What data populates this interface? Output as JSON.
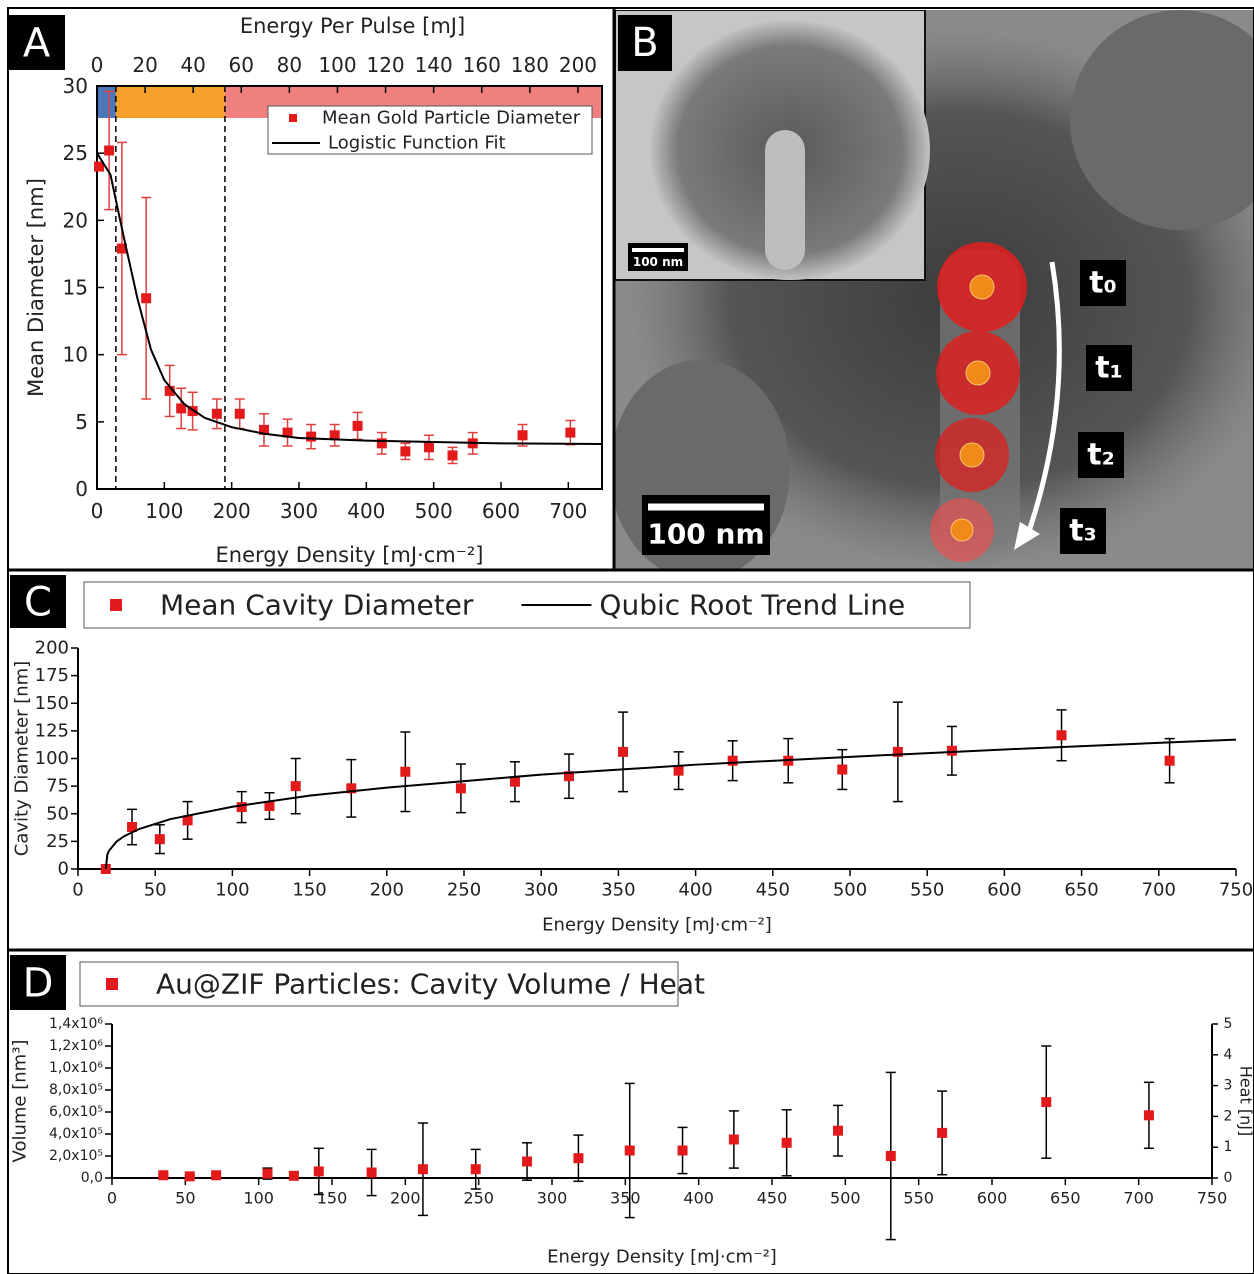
{
  "chart_data": [
    {
      "type": "scatter",
      "panel_label": "A",
      "x2label": "Energy Per Pulse [mJ]",
      "xlabel": "Energy Density [mJ·cm⁻²]",
      "ylabel": "Mean Diameter [nm]",
      "xlim": [
        0,
        750
      ],
      "xticks": [
        0,
        100,
        200,
        300,
        400,
        500,
        600,
        700
      ],
      "x2lim": [
        0,
        210
      ],
      "x2ticks": [
        0,
        20,
        40,
        60,
        80,
        100,
        120,
        140,
        160,
        180,
        200
      ],
      "ylim": [
        0,
        30
      ],
      "yticks": [
        0,
        5,
        10,
        15,
        20,
        25,
        30
      ],
      "regions": [
        {
          "from": 0,
          "to": 28,
          "color": "#4a78b8"
        },
        {
          "from": 28,
          "to": 190,
          "color": "#f5a02a"
        },
        {
          "from": 190,
          "to": 750,
          "color": "#f08080"
        }
      ],
      "vlines": [
        28,
        190
      ],
      "legend": "upper right",
      "series": [
        {
          "name": "Mean Gold Particle Diameter",
          "color": "#e31a1c",
          "error_color": "#e0413f",
          "x": [
            3,
            18,
            37,
            73,
            108,
            125,
            142,
            178,
            212,
            248,
            283,
            318,
            353,
            387,
            423,
            458,
            493,
            528,
            558,
            632,
            703
          ],
          "values": [
            24.0,
            25.2,
            17.9,
            14.2,
            7.3,
            6.0,
            5.8,
            5.6,
            5.6,
            4.4,
            4.2,
            3.9,
            4.0,
            4.7,
            3.4,
            2.8,
            3.1,
            2.5,
            3.4,
            4.0,
            4.2
          ],
          "errors": [
            0,
            4.4,
            7.9,
            7.5,
            1.9,
            1.5,
            1.4,
            1.1,
            1.1,
            1.2,
            1.0,
            0.9,
            0.8,
            1.0,
            0.8,
            0.6,
            0.9,
            0.6,
            0.8,
            0.8,
            0.9
          ]
        },
        {
          "name": "Logistic Function Fit",
          "type": "line",
          "color": "#000000",
          "x": [
            0,
            20,
            40,
            60,
            80,
            100,
            130,
            160,
            200,
            250,
            300,
            400,
            500,
            600,
            750
          ],
          "values": [
            25.0,
            23.4,
            18.7,
            14.2,
            10.4,
            8.1,
            6.3,
            5.3,
            4.6,
            4.1,
            3.8,
            3.6,
            3.5,
            3.4,
            3.35
          ]
        }
      ]
    },
    {
      "type": "scatter",
      "panel_label": "C",
      "xlabel": "Energy Density [mJ·cm⁻²]",
      "ylabel": "Cavity Diameter [nm]",
      "xlim": [
        0,
        750
      ],
      "xticks": [
        0,
        50,
        100,
        150,
        200,
        250,
        300,
        350,
        400,
        450,
        500,
        550,
        600,
        650,
        700,
        750
      ],
      "ylim": [
        0,
        200
      ],
      "yticks": [
        0,
        25,
        50,
        75,
        100,
        125,
        150,
        175,
        200
      ],
      "legend": "top",
      "series": [
        {
          "name": "Mean Cavity Diameter",
          "color": "#e31a1c",
          "error_color": "#000000",
          "x": [
            18,
            35,
            53,
            71,
            106,
            124,
            141,
            177,
            212,
            248,
            283,
            318,
            353,
            389,
            424,
            460,
            495,
            531,
            566,
            637,
            707
          ],
          "values": [
            0,
            38,
            27,
            44,
            56,
            57,
            75,
            73,
            88,
            73,
            79,
            84,
            106,
            89,
            98,
            98,
            90,
            106,
            107,
            121,
            98
          ],
          "errors": [
            0,
            16,
            13,
            17,
            14,
            12,
            25,
            26,
            36,
            22,
            18,
            20,
            36,
            17,
            18,
            20,
            18,
            45,
            22,
            23,
            20
          ]
        },
        {
          "name": "Qubic Root Trend Line",
          "type": "line",
          "color": "#000000",
          "x": [
            18,
            19,
            20,
            25,
            30,
            40,
            60,
            100,
            150,
            200,
            300,
            400,
            500,
            600,
            750
          ],
          "values": [
            0,
            13,
            16.4,
            24.9,
            29.8,
            36.4,
            45.2,
            56.3,
            66.4,
            73.6,
            85.4,
            94.4,
            101.5,
            108.2,
            117.1
          ]
        }
      ]
    },
    {
      "type": "scatter",
      "panel_label": "D",
      "xlabel": "Energy Density [mJ·cm⁻²]",
      "ylabel": "Volume [nm³]",
      "y2label": "Heat [nJ]",
      "xlim": [
        0,
        750
      ],
      "xticks": [
        0,
        50,
        100,
        150,
        200,
        250,
        300,
        350,
        400,
        450,
        500,
        550,
        600,
        650,
        700,
        750
      ],
      "ylim": [
        0,
        1400000
      ],
      "yticks": [
        {
          "value": 0,
          "label": "0,0"
        },
        {
          "value": 200000,
          "label": "2,0x10⁵"
        },
        {
          "value": 400000,
          "label": "4,0x10⁵"
        },
        {
          "value": 600000,
          "label": "6,0x10⁵"
        },
        {
          "value": 800000,
          "label": "8,0x10⁵"
        },
        {
          "value": 1000000,
          "label": "1,0x10⁶"
        },
        {
          "value": 1200000,
          "label": "1,2x10⁶"
        },
        {
          "value": 1400000,
          "label": "1,4x10⁶"
        }
      ],
      "y2lim": [
        0,
        5
      ],
      "y2ticks": [
        0,
        1,
        2,
        3,
        4,
        5
      ],
      "legend": "top",
      "series": [
        {
          "name": "Au@ZIF Particles: Cavity Volume / Heat",
          "color": "#e31a1c",
          "error_color": "#000000",
          "x": [
            35,
            53,
            71,
            106,
            124,
            141,
            177,
            212,
            248,
            283,
            318,
            353,
            389,
            424,
            460,
            495,
            531,
            566,
            637,
            707
          ],
          "values": [
            25000,
            15000,
            25000,
            40000,
            20000,
            60000,
            50000,
            80000,
            80000,
            150000,
            180000,
            250000,
            250000,
            350000,
            320000,
            430000,
            200000,
            410000,
            690000,
            570000
          ],
          "errors": [
            10000,
            10000,
            20000,
            50000,
            30000,
            210000,
            210000,
            420000,
            180000,
            170000,
            210000,
            610000,
            210000,
            260000,
            300000,
            230000,
            760000,
            380000,
            510000,
            300000
          ]
        }
      ]
    }
  ],
  "micrograph": {
    "label": "B",
    "scale_bar": "100 nm",
    "inset_scale_bar": "100 nm",
    "time_labels": [
      "t₀",
      "t₁",
      "t₂",
      "t₃"
    ]
  }
}
